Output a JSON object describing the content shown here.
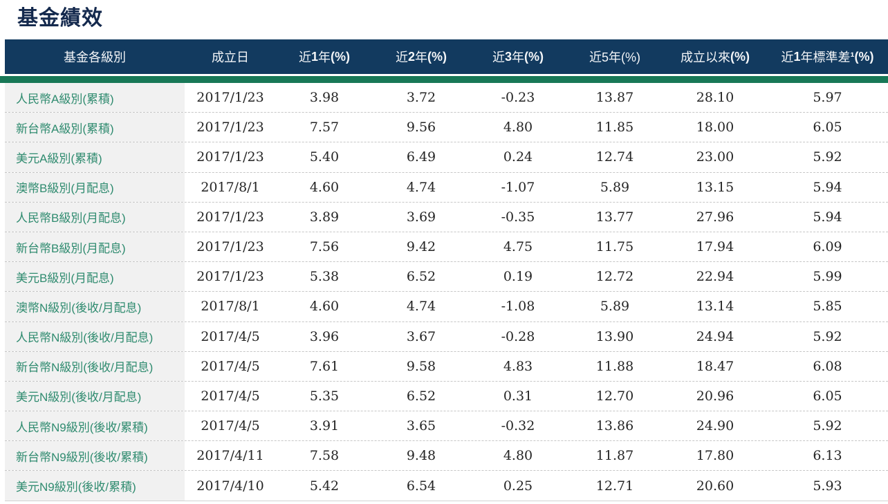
{
  "page": {
    "title": "基金績效"
  },
  "colors": {
    "header_bg": "#123a5f",
    "accent_green_bar": "#187857",
    "fund_name_green": "#2f8b6f",
    "title_navy": "#14294d",
    "name_column_bg": "#f1f1f1"
  },
  "table": {
    "columns": [
      {
        "label": "基金各級別",
        "bold_latin": false
      },
      {
        "label": "成立日",
        "bold_latin": false
      },
      {
        "label": "近1年(%)",
        "bold_latin": true
      },
      {
        "label": "近2年(%)",
        "bold_latin": true
      },
      {
        "label": "近3年(%)",
        "bold_latin": true
      },
      {
        "label": "近5年(%)",
        "bold_latin": false
      },
      {
        "label": "成立以來(%)",
        "bold_latin": true
      },
      {
        "label": "近1年標準差¹(%)",
        "bold_latin": true
      }
    ],
    "rows": [
      [
        "人民幣A級別(累積)",
        "2017/1/23",
        "3.98",
        "3.72",
        "-0.23",
        "13.87",
        "28.10",
        "5.97"
      ],
      [
        "新台幣A級別(累積)",
        "2017/1/23",
        "7.57",
        "9.56",
        "4.80",
        "11.85",
        "18.00",
        "6.05"
      ],
      [
        "美元A級別(累積)",
        "2017/1/23",
        "5.40",
        "6.49",
        "0.24",
        "12.74",
        "23.00",
        "5.92"
      ],
      [
        "澳幣B級別(月配息)",
        "2017/8/1",
        "4.60",
        "4.74",
        "-1.07",
        "5.89",
        "13.15",
        "5.94"
      ],
      [
        "人民幣B級別(月配息)",
        "2017/1/23",
        "3.89",
        "3.69",
        "-0.35",
        "13.77",
        "27.96",
        "5.94"
      ],
      [
        "新台幣B級別(月配息)",
        "2017/1/23",
        "7.56",
        "9.42",
        "4.75",
        "11.75",
        "17.94",
        "6.09"
      ],
      [
        "美元B級別(月配息)",
        "2017/1/23",
        "5.38",
        "6.52",
        "0.19",
        "12.72",
        "22.94",
        "5.99"
      ],
      [
        "澳幣N級別(後收/月配息)",
        "2017/8/1",
        "4.60",
        "4.74",
        "-1.08",
        "5.89",
        "13.14",
        "5.85"
      ],
      [
        "人民幣N級別(後收/月配息)",
        "2017/4/5",
        "3.96",
        "3.67",
        "-0.28",
        "13.90",
        "24.94",
        "5.92"
      ],
      [
        "新台幣N級別(後收/月配息)",
        "2017/4/5",
        "7.61",
        "9.58",
        "4.83",
        "11.88",
        "18.47",
        "6.08"
      ],
      [
        "美元N級別(後收/月配息)",
        "2017/4/5",
        "5.35",
        "6.52",
        "0.31",
        "12.70",
        "20.96",
        "6.05"
      ],
      [
        "人民幣N9級別(後收/累積)",
        "2017/4/5",
        "3.91",
        "3.65",
        "-0.32",
        "13.86",
        "24.90",
        "5.92"
      ],
      [
        "新台幣N9級別(後收/累積)",
        "2017/4/11",
        "7.58",
        "9.48",
        "4.80",
        "11.87",
        "17.80",
        "6.13"
      ],
      [
        "美元N9級別(後收/累積)",
        "2017/4/10",
        "5.42",
        "6.54",
        "0.25",
        "12.71",
        "20.60",
        "5.93"
      ]
    ]
  }
}
